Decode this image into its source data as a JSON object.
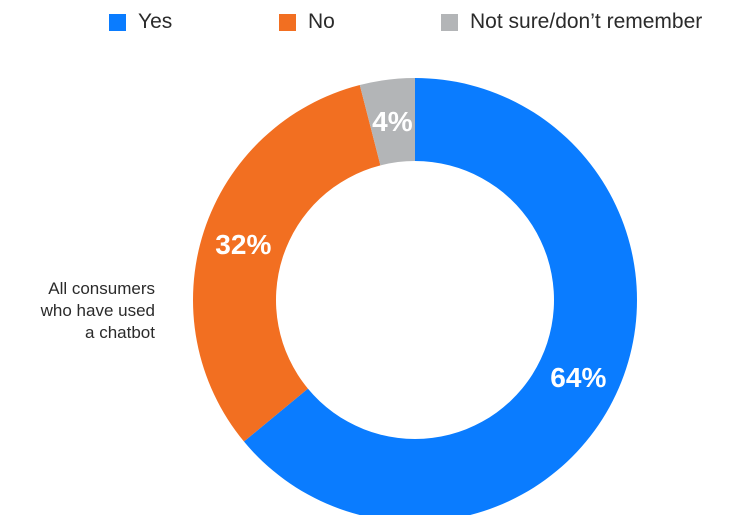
{
  "chart_data": {
    "type": "pie",
    "donut": true,
    "category": "All consumers who have used a chatbot",
    "category_lines": [
      "All consumers",
      "who have used",
      "a chatbot"
    ],
    "legend_placement": "top",
    "series": [
      {
        "name": "Yes",
        "value": 64,
        "label": "64%",
        "color": "#0a7cff"
      },
      {
        "name": "No",
        "value": 32,
        "label": "32%",
        "color": "#f26f21"
      },
      {
        "name": "Not sure/don’t remember",
        "value": 4,
        "label": "4%",
        "color": "#b3b5b7"
      }
    ]
  }
}
